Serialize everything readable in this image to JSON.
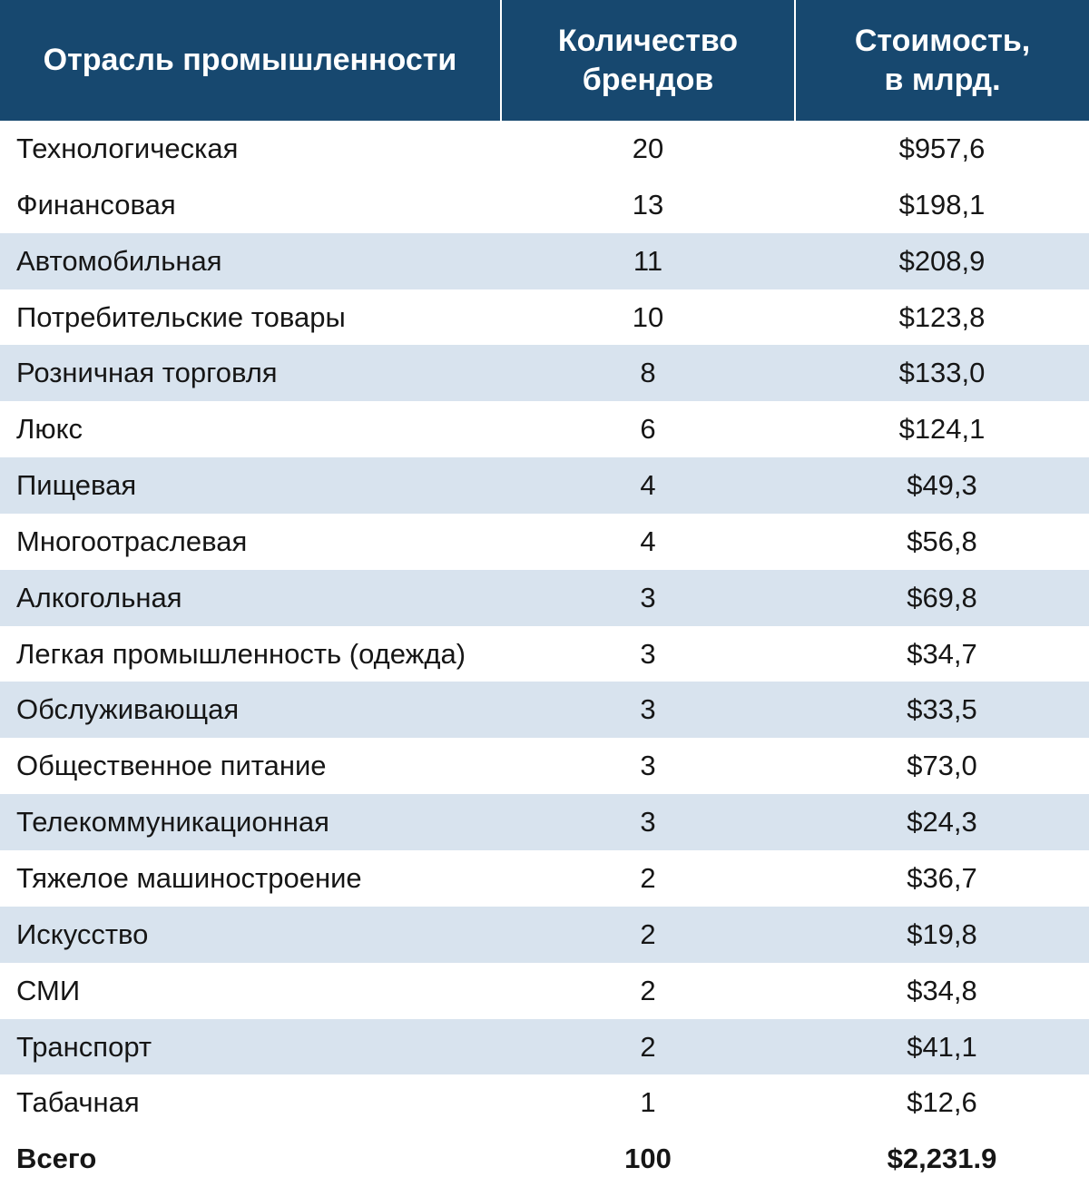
{
  "table": {
    "type": "table",
    "header_bg": "#17486f",
    "header_text_color": "#ffffff",
    "header_fontsize": 34,
    "header_fontweight": 700,
    "row_bg": "#ffffff",
    "row_alt_bg": "#d8e3ee",
    "row_fontsize": 31,
    "row_text_color": "#161616",
    "col_widths_pct": [
      46,
      27,
      27
    ],
    "col_align": [
      "left",
      "center",
      "center"
    ],
    "columns": [
      {
        "label": "Отрасль промышленности"
      },
      {
        "label_line1": "Количество",
        "label_line2": "брендов"
      },
      {
        "label_line1": "Стоимость,",
        "label_line2": "в млрд."
      }
    ],
    "rows": [
      {
        "industry": "Технологическая",
        "brands": "20",
        "value": "$957,6"
      },
      {
        "industry": "Финансовая",
        "brands": "13",
        "value": "$198,1"
      },
      {
        "industry": "Автомобильная",
        "brands": "11",
        "value": "$208,9"
      },
      {
        "industry": "Потребительские товары",
        "brands": "10",
        "value": "$123,8"
      },
      {
        "industry": "Розничная торговля",
        "brands": "8",
        "value": "$133,0"
      },
      {
        "industry": "Люкс",
        "brands": "6",
        "value": "$124,1"
      },
      {
        "industry": "Пищевая",
        "brands": "4",
        "value": "$49,3"
      },
      {
        "industry": "Многоотраслевая",
        "brands": "4",
        "value": "$56,8"
      },
      {
        "industry": "Алкогольная",
        "brands": "3",
        "value": "$69,8"
      },
      {
        "industry": "Легкая промышленность (одежда)",
        "brands": "3",
        "value": "$34,7"
      },
      {
        "industry": "Обслуживающая",
        "brands": "3",
        "value": "$33,5"
      },
      {
        "industry": "Общественное питание",
        "brands": "3",
        "value": "$73,0"
      },
      {
        "industry": "Телекоммуникационная",
        "brands": "3",
        "value": "$24,3"
      },
      {
        "industry": "Тяжелое машиностроение",
        "brands": "2",
        "value": "$36,7"
      },
      {
        "industry": "Искусство",
        "brands": "2",
        "value": "$19,8"
      },
      {
        "industry": "СМИ",
        "brands": "2",
        "value": "$34,8"
      },
      {
        "industry": "Транспорт",
        "brands": "2",
        "value": "$41,1"
      },
      {
        "industry": "Табачная",
        "brands": "1",
        "value": "$12,6"
      }
    ],
    "total": {
      "label": "Всего",
      "brands": "100",
      "value": "$2,231.9",
      "fontweight": 700
    }
  }
}
